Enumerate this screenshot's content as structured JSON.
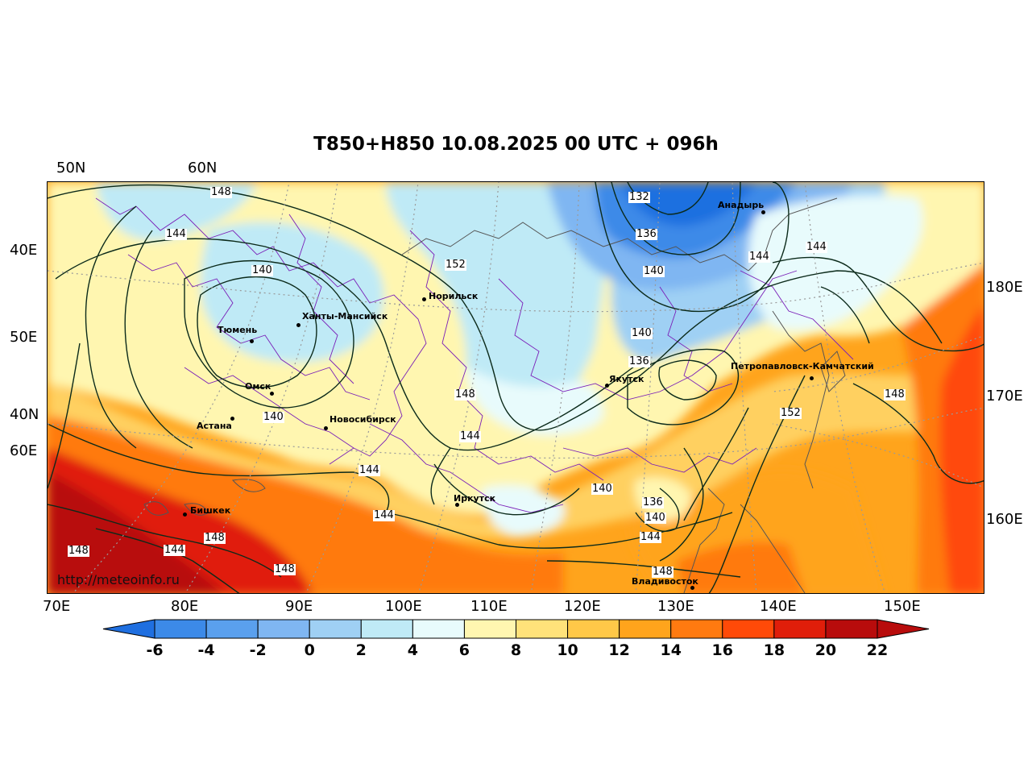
{
  "title": "T850+H850 10.08.2025 00 UTC + 096h",
  "lat_labels_top": [
    "50N",
    "60N"
  ],
  "left_labels": [
    "40E",
    "50E",
    "40N",
    "60E"
  ],
  "right_labels": [
    "180E",
    "170E",
    "160E"
  ],
  "bottom_labels": [
    "70E",
    "80E",
    "90E",
    "100E",
    "110E",
    "120E",
    "130E",
    "140E",
    "150E"
  ],
  "cities": [
    "Норильск",
    "Ханты-Мансийск",
    "Тюмень",
    "Омск",
    "Астана",
    "Новосибирск",
    "Якутск",
    "Анадырь",
    "Петропавловск-Камчатский",
    "Иркутск",
    "Бишкек",
    "Владивосток"
  ],
  "contour_labels": [
    "148",
    "144",
    "140",
    "152",
    "132",
    "136",
    "140",
    "140",
    "136",
    "148",
    "144",
    "144",
    "144",
    "140",
    "136",
    "140",
    "144",
    "148",
    "148",
    "144",
    "148",
    "148",
    "144",
    "144",
    "152",
    "148",
    "140"
  ],
  "watermark": "http://meteoinfo.ru",
  "colorbar": {
    "ticks": [
      "-6",
      "-4",
      "-2",
      "0",
      "2",
      "4",
      "6",
      "8",
      "10",
      "12",
      "14",
      "16",
      "18",
      "20",
      "22"
    ],
    "colors": [
      "#1f6fe0",
      "#3c8ae8",
      "#5aa0ee",
      "#7fb6f2",
      "#9fd0f4",
      "#bfeaf6",
      "#e8fbfc",
      "#fff6b0",
      "#ffe27a",
      "#ffc848",
      "#ffa41c",
      "#ff7a10",
      "#ff4a08",
      "#e01e0a",
      "#b80c0c"
    ]
  }
}
